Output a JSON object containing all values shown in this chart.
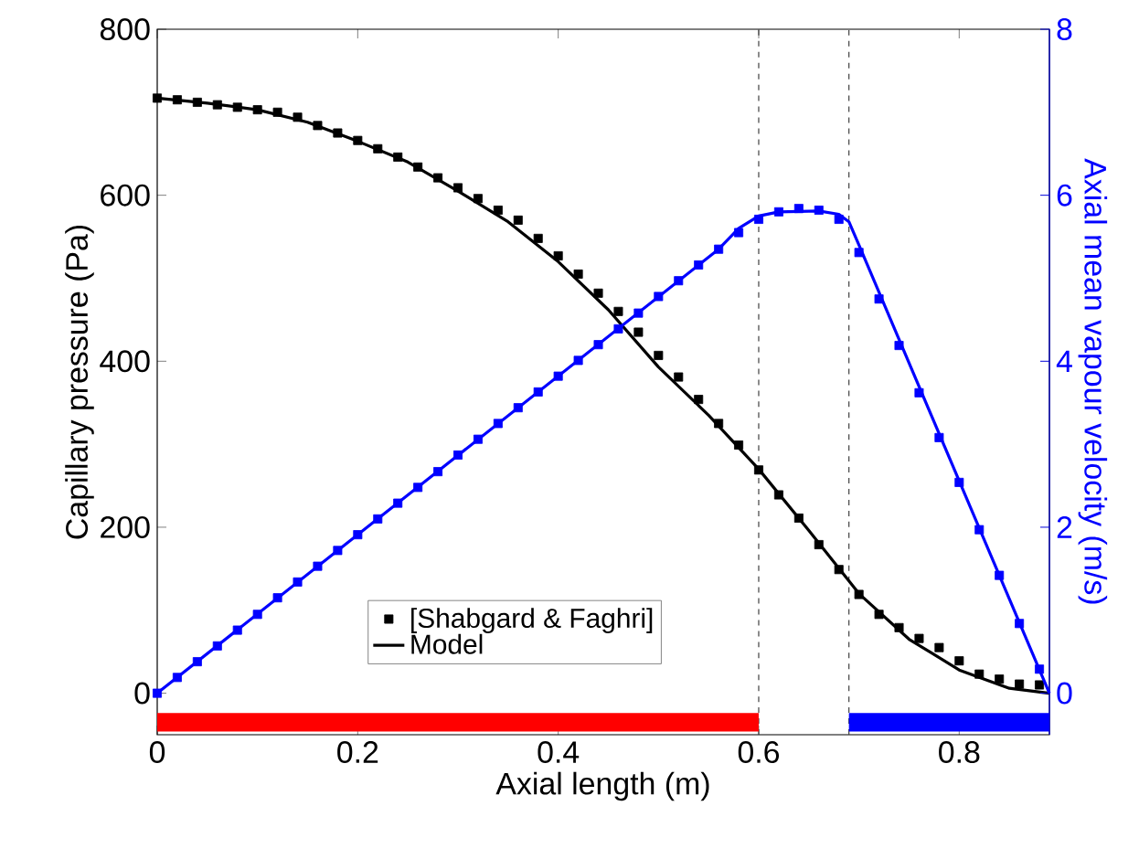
{
  "chart_data": {
    "type": "line",
    "xlabel": "Axial length (m)",
    "ylabel": "Capillary pressure (Pa)",
    "y2label": "Axial mean vapour velocity (m/s)",
    "xlim": [
      0,
      0.89
    ],
    "xticks": [
      0,
      0.2,
      0.4,
      0.6,
      0.8
    ],
    "ylim": [
      -50,
      800
    ],
    "yticks": [
      0,
      200,
      400,
      600,
      800
    ],
    "y2lim": [
      -0.5,
      8
    ],
    "y2ticks": [
      0,
      2,
      4,
      6,
      8
    ],
    "legend": "bottom",
    "series": [
      {
        "type": "scatter",
        "name": "[Shabgard & Faghri]",
        "color": "#000000",
        "marker": "square",
        "x": [
          0,
          0.02,
          0.04,
          0.06,
          0.08,
          0.1,
          0.12,
          0.14,
          0.16,
          0.18,
          0.2,
          0.22,
          0.24,
          0.26,
          0.28,
          0.3,
          0.32,
          0.34,
          0.36,
          0.38,
          0.4,
          0.42,
          0.44,
          0.46,
          0.48,
          0.5,
          0.52,
          0.54,
          0.56,
          0.58,
          0.6,
          0.62,
          0.64,
          0.66,
          0.68,
          0.7,
          0.72,
          0.74,
          0.76,
          0.78,
          0.8,
          0.82,
          0.84,
          0.86,
          0.88
        ],
        "values": [
          717,
          715,
          712,
          709,
          706,
          703,
          700,
          694,
          684,
          675,
          666,
          656,
          646,
          634,
          621,
          609,
          596,
          582,
          570,
          548,
          527,
          505,
          482,
          460,
          435,
          407,
          381,
          354,
          325,
          299,
          269,
          239,
          211,
          179,
          149,
          119,
          95,
          79,
          66,
          55,
          39,
          23,
          17,
          11,
          10
        ]
      },
      {
        "name": "Model",
        "color": "#000000",
        "line_style": "solid",
        "x": [
          0,
          0.05,
          0.1,
          0.15,
          0.2,
          0.25,
          0.3,
          0.35,
          0.4,
          0.45,
          0.5,
          0.55,
          0.6,
          0.65,
          0.7,
          0.75,
          0.8,
          0.85,
          0.89
        ],
        "values": [
          717,
          711,
          703,
          688,
          665,
          640,
          605,
          568,
          520,
          462,
          393,
          335,
          270,
          196,
          120,
          65,
          28,
          6,
          0
        ]
      },
      {
        "type": "scatter",
        "color": "#0000ff",
        "marker": "square",
        "axis": "y2",
        "x": [
          0,
          0.02,
          0.04,
          0.06,
          0.08,
          0.1,
          0.12,
          0.14,
          0.16,
          0.18,
          0.2,
          0.22,
          0.24,
          0.26,
          0.28,
          0.3,
          0.32,
          0.34,
          0.36,
          0.38,
          0.4,
          0.42,
          0.44,
          0.46,
          0.48,
          0.5,
          0.52,
          0.54,
          0.56,
          0.58,
          0.6,
          0.62,
          0.64,
          0.66,
          0.68,
          0.7,
          0.72,
          0.74,
          0.76,
          0.78,
          0.8,
          0.82,
          0.84,
          0.86,
          0.88
        ],
        "values": [
          0,
          0.19,
          0.38,
          0.57,
          0.76,
          0.95,
          1.15,
          1.34,
          1.53,
          1.72,
          1.91,
          2.1,
          2.29,
          2.48,
          2.67,
          2.87,
          3.06,
          3.25,
          3.44,
          3.63,
          3.82,
          4.01,
          4.2,
          4.39,
          4.58,
          4.78,
          4.97,
          5.16,
          5.35,
          5.55,
          5.71,
          5.8,
          5.84,
          5.82,
          5.71,
          5.31,
          4.75,
          4.19,
          3.62,
          3.08,
          2.54,
          1.97,
          1.42,
          0.84,
          0.29
        ]
      },
      {
        "color": "#0000ff",
        "line_style": "solid",
        "axis": "y2",
        "x": [
          0,
          0.56,
          0.58,
          0.6,
          0.62,
          0.66,
          0.68,
          0.69,
          0.7,
          0.89
        ],
        "values": [
          0,
          5.35,
          5.6,
          5.75,
          5.8,
          5.81,
          5.77,
          5.68,
          5.4,
          0
        ]
      },
      {
        "color": "#ff0000",
        "x": [
          0,
          0.6
        ],
        "values": [
          -35,
          -35
        ]
      },
      {
        "color": "#0000ff",
        "x": [
          0.69,
          0.89
        ],
        "values": [
          -35,
          -35
        ]
      }
    ],
    "ref_lines": [
      {
        "axis": "x",
        "value": 0.6,
        "color": "#404040",
        "line_style": "dashed"
      },
      {
        "axis": "x",
        "value": 0.69,
        "color": "#404040",
        "line_style": "dashed"
      }
    ]
  }
}
